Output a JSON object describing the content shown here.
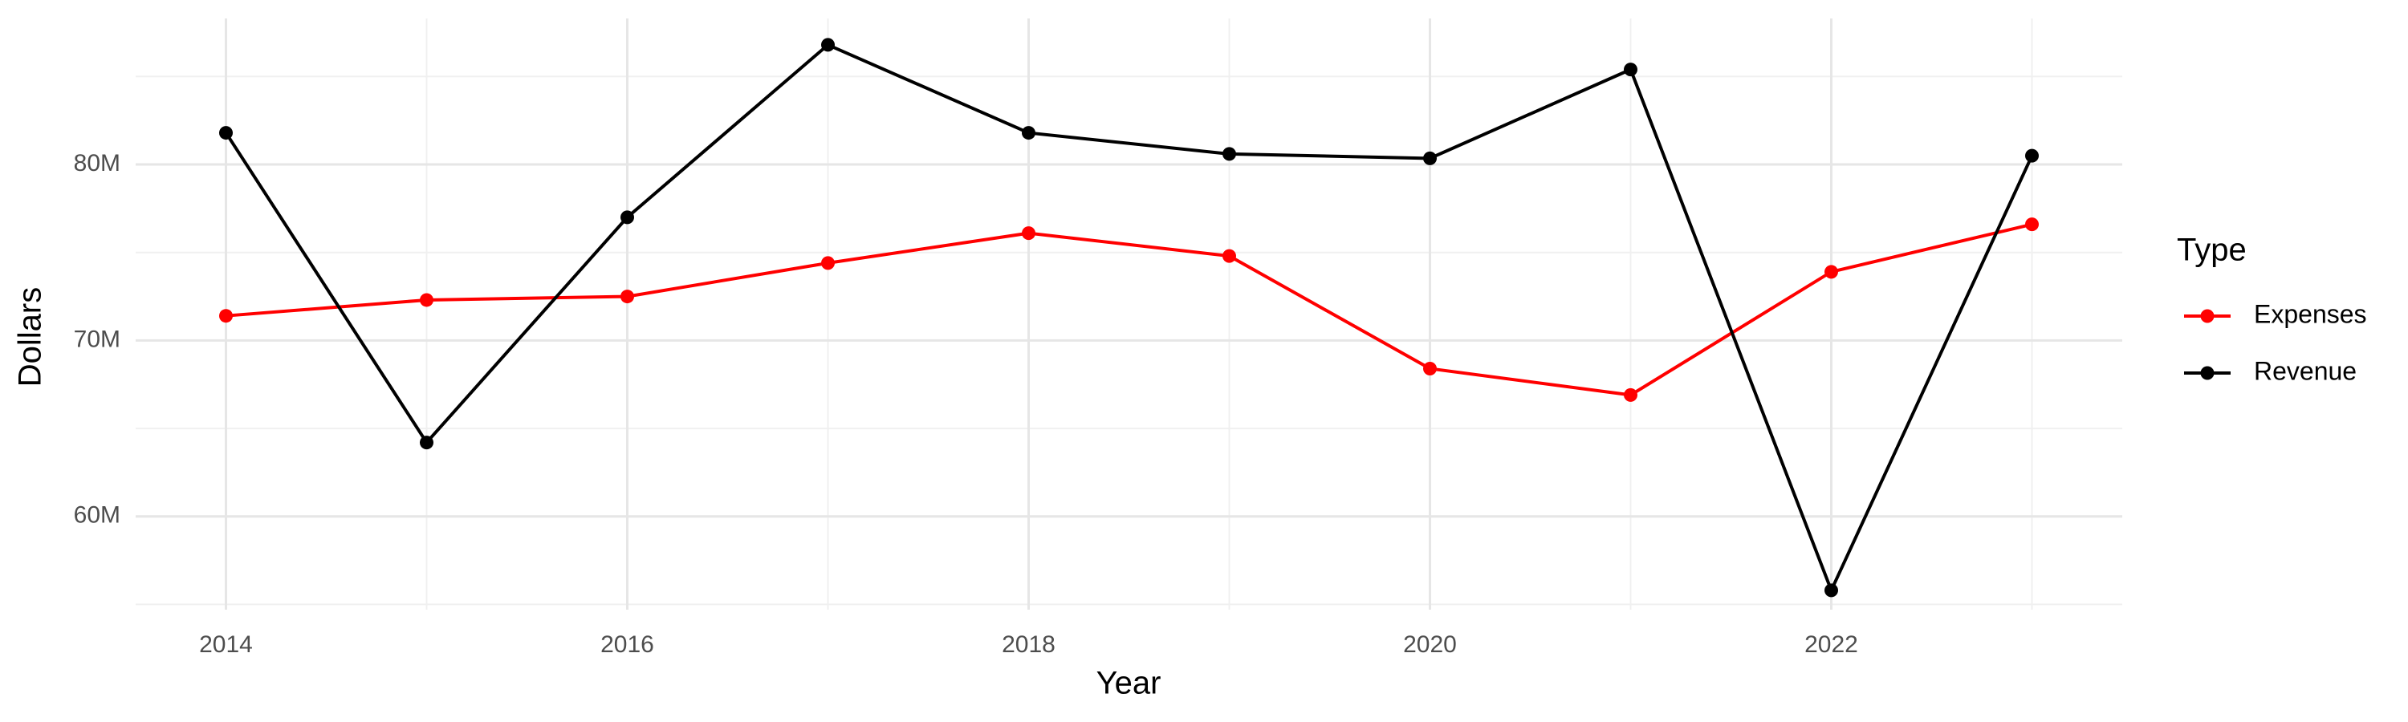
{
  "chart_data": {
    "type": "line",
    "x_label": "Year",
    "y_label": "Dollars",
    "legend_title": "Type",
    "x": [
      2014,
      2015,
      2016,
      2017,
      2018,
      2019,
      2020,
      2021,
      2022,
      2023
    ],
    "series": [
      {
        "name": "Expenses",
        "color": "#ff0000",
        "values": [
          71400000,
          72300000,
          72500000,
          74400000,
          76100000,
          74800000,
          68400000,
          66900000,
          73900000,
          76600000
        ]
      },
      {
        "name": "Revenue",
        "color": "#000000",
        "values": [
          81800000,
          64200000,
          77000000,
          86800000,
          81800000,
          80600000,
          80350000,
          85400000,
          55800000,
          80500000
        ]
      }
    ],
    "xlim": [
      2013.55,
      2023.45
    ],
    "ylim": [
      54700000,
      88300000
    ],
    "xticks": [
      2014,
      2016,
      2018,
      2020,
      2022
    ],
    "yticks": [
      {
        "value": 60000000,
        "label": "60M"
      },
      {
        "value": 70000000,
        "label": "70M"
      },
      {
        "value": 80000000,
        "label": "80M"
      }
    ],
    "x_minor_ticks": [
      2015,
      2017,
      2019,
      2021,
      2023
    ],
    "y_minor_ticks": [
      55000000,
      65000000,
      75000000,
      85000000
    ],
    "grid": true,
    "legend_position": "right"
  }
}
